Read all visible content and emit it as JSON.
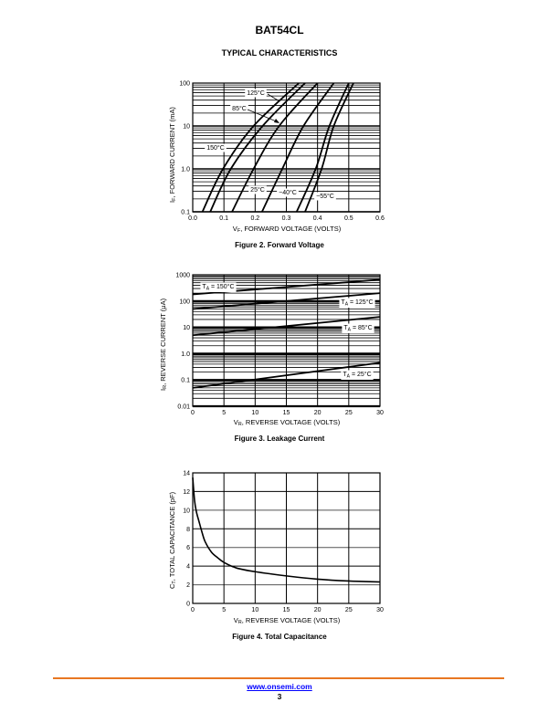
{
  "header": {
    "part_number": "BAT54CL",
    "section_title": "TYPICAL CHARACTERISTICS"
  },
  "footer": {
    "link": "www.onsemi.com",
    "page_number": "3",
    "rule_color": "#e87722"
  },
  "chart_data": [
    {
      "type": "line",
      "caption": "Figure 2. Forward Voltage",
      "xlabel": {
        "main": "V",
        "sub": "F",
        "rest": ", FORWARD VOLTAGE (VOLTS)"
      },
      "ylabel": {
        "main": "I",
        "sub": "F",
        "rest": ", FORWARD CURRENT (mA)"
      },
      "xlim": [
        0,
        0.6
      ],
      "ylim": [
        0.1,
        100
      ],
      "yscale": "log",
      "grid": true,
      "xticks": [
        "0.0",
        "0.1",
        "0.2",
        "0.3",
        "0.4",
        "0.5",
        "0.6"
      ],
      "xtick_values": [
        0,
        0.1,
        0.2,
        0.3,
        0.4,
        0.5,
        0.6
      ],
      "yticks": [
        "0.1",
        "1.0",
        "10",
        "100"
      ],
      "ytick_values": [
        0.1,
        1,
        10,
        100
      ],
      "series": [
        {
          "name": "150°C",
          "x": [
            0.031,
            0.097,
            0.195,
            0.34
          ],
          "y": [
            0.1,
            1,
            10,
            100
          ]
        },
        {
          "name": "125°C",
          "x": [
            0.056,
            0.122,
            0.224,
            0.36
          ],
          "y": [
            0.1,
            1,
            10,
            100
          ]
        },
        {
          "name": "85°C",
          "x": [
            0.126,
            0.195,
            0.277,
            0.4
          ],
          "y": [
            0.1,
            1,
            10,
            100
          ]
        },
        {
          "name": "25°C",
          "x": [
            0.222,
            0.287,
            0.355,
            0.452
          ],
          "y": [
            0.1,
            1,
            10,
            100
          ]
        },
        {
          "name": "−40°C",
          "x": [
            0.333,
            0.394,
            0.438,
            0.5
          ],
          "y": [
            0.1,
            1,
            10,
            100
          ]
        },
        {
          "name": "−55°C",
          "x": [
            0.36,
            0.413,
            0.452,
            0.515
          ],
          "y": [
            0.1,
            1,
            10,
            100
          ]
        }
      ]
    },
    {
      "type": "line",
      "caption": "Figure 3. Leakage Current",
      "xlabel": {
        "main": "V",
        "sub": "R",
        "rest": ", REVERSE VOLTAGE (VOLTS)"
      },
      "ylabel": {
        "main": "I",
        "sub": "R",
        "rest": ", REVERSE CURRENT (μA)"
      },
      "xlim": [
        0,
        30
      ],
      "ylim": [
        0.01,
        1000
      ],
      "yscale": "log",
      "grid": true,
      "xticks": [
        "0",
        "5",
        "10",
        "15",
        "20",
        "25",
        "30"
      ],
      "xtick_values": [
        0,
        5,
        10,
        15,
        20,
        25,
        30
      ],
      "yticks": [
        "0.01",
        "0.1",
        "1.0",
        "10",
        "100",
        "1000"
      ],
      "ytick_values": [
        0.01,
        0.1,
        1,
        10,
        100,
        1000
      ],
      "series": [
        {
          "name": {
            "main": "T",
            "sub": "A",
            "rest": " = 150°C"
          },
          "x": [
            0,
            30
          ],
          "y": [
            180,
            650
          ]
        },
        {
          "name": {
            "main": "T",
            "sub": "A",
            "rest": " = 125°C"
          },
          "x": [
            0,
            30
          ],
          "y": [
            50,
            200
          ]
        },
        {
          "name": {
            "main": "T",
            "sub": "A",
            "rest": " = 85°C"
          },
          "x": [
            0,
            30
          ],
          "y": [
            5,
            25
          ]
        },
        {
          "name": {
            "main": "T",
            "sub": "A",
            "rest": " = 25°C"
          },
          "x": [
            0,
            30
          ],
          "y": [
            0.05,
            0.45
          ]
        }
      ]
    },
    {
      "type": "line",
      "caption": "Figure 4. Total Capacitance",
      "xlabel": {
        "main": "V",
        "sub": "R",
        "rest": ", REVERSE VOLTAGE (VOLTS)"
      },
      "ylabel": {
        "main": "C",
        "sub": "T",
        "rest": ", TOTAL CAPACITANCE (pF)"
      },
      "xlim": [
        0,
        30
      ],
      "ylim": [
        0,
        14
      ],
      "yscale": "linear",
      "grid": true,
      "xticks": [
        "0",
        "5",
        "10",
        "15",
        "20",
        "25",
        "30"
      ],
      "xtick_values": [
        0,
        5,
        10,
        15,
        20,
        25,
        30
      ],
      "yticks": [
        "0",
        "2",
        "4",
        "6",
        "8",
        "10",
        "12",
        "14"
      ],
      "ytick_values": [
        0,
        2,
        4,
        6,
        8,
        10,
        12,
        14
      ],
      "series": [
        {
          "name": "CT",
          "x": [
            0,
            0.3,
            0.6,
            1,
            1.5,
            2,
            3,
            4,
            5,
            7,
            10,
            15,
            20,
            25,
            30
          ],
          "y": [
            13.5,
            11,
            9.8,
            8.8,
            7.6,
            6.6,
            5.5,
            4.9,
            4.4,
            3.8,
            3.4,
            2.95,
            2.6,
            2.4,
            2.3
          ]
        }
      ]
    }
  ]
}
